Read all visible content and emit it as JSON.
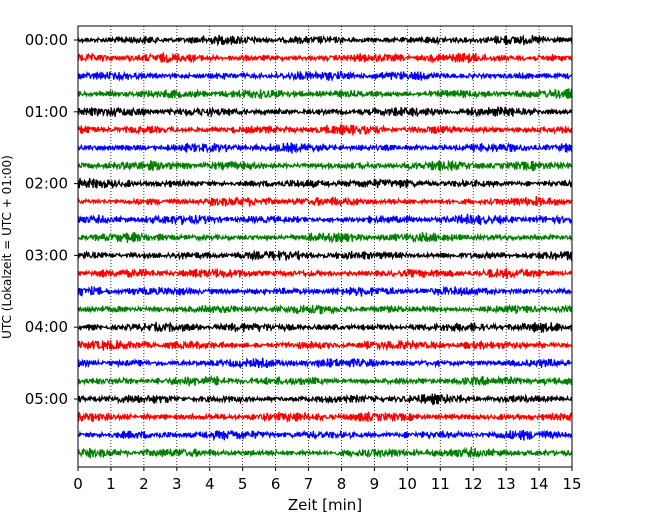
{
  "chart_data": {
    "type": "line",
    "title": "",
    "xlabel": "Zeit  [min]",
    "ylabel": "UTC (Lokalzeit = UTC + 01:00)",
    "xlim": [
      0,
      15
    ],
    "x_ticks": [
      0,
      1,
      2,
      3,
      4,
      5,
      6,
      7,
      8,
      9,
      10,
      11,
      12,
      13,
      14,
      15
    ],
    "y_tick_labels": [
      "00:00",
      "01:00",
      "02:00",
      "03:00",
      "04:00",
      "05:00"
    ],
    "y_tick_row_index": [
      0,
      4,
      8,
      12,
      16,
      20
    ],
    "rows_per_hour": 4,
    "trace_count": 24,
    "trace_colors": [
      "#000000",
      "#ff0000",
      "#0000ff",
      "#008000"
    ],
    "grid": "vertical dotted at each minute",
    "trace_labels": [
      "00:00",
      "00:15",
      "00:30",
      "00:45",
      "01:00",
      "01:15",
      "01:30",
      "01:45",
      "02:00",
      "02:15",
      "02:30",
      "02:45",
      "03:00",
      "03:15",
      "03:30",
      "03:45",
      "04:00",
      "04:15",
      "04:30",
      "04:45",
      "05:00",
      "05:15",
      "05:30",
      "05:45"
    ]
  }
}
